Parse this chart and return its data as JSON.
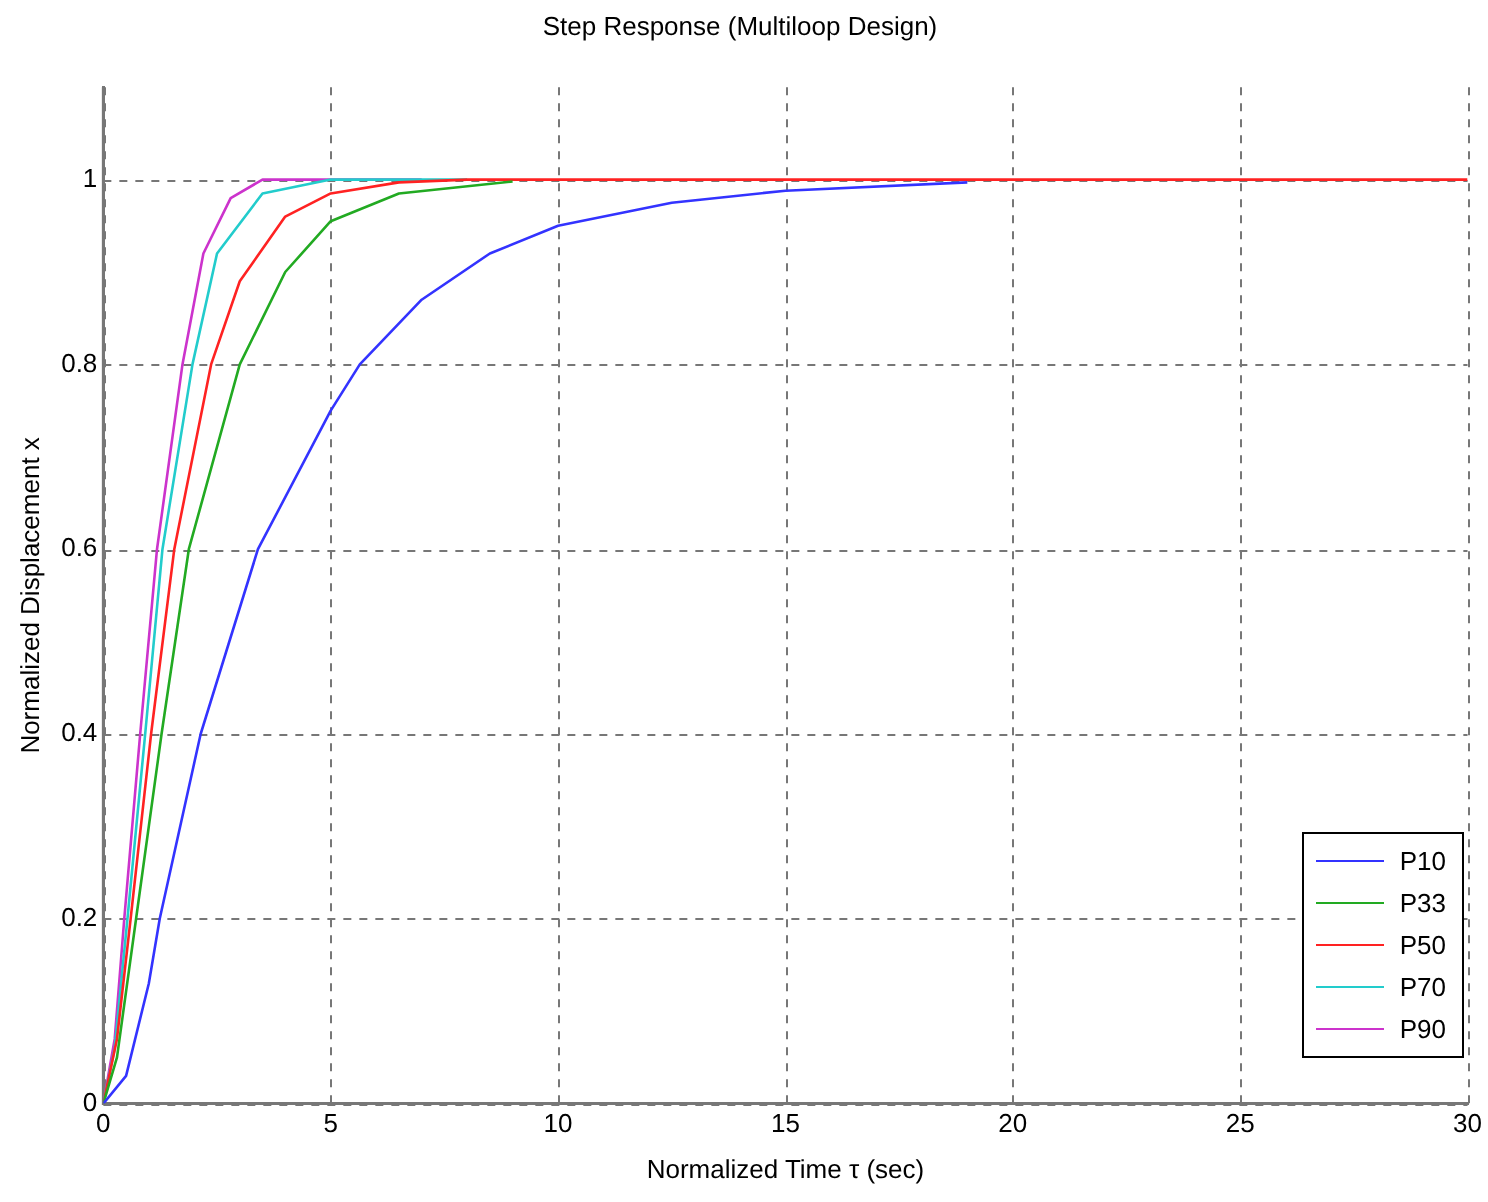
{
  "chart_data": {
    "type": "line",
    "title": "Step Response (Multiloop Design)",
    "xlabel": "Normalized Time τ (sec)",
    "ylabel": "Normalized Displacement x",
    "xlim": [
      0,
      30
    ],
    "xticks": [
      0,
      5,
      10,
      15,
      20,
      25,
      30
    ],
    "ylim": [
      0,
      1.1
    ],
    "yticks": [
      0,
      0.2,
      0.4,
      0.6,
      0.8,
      1
    ],
    "grid": true,
    "legend": "bottom right",
    "marker": "none",
    "series": [
      {
        "name": "P10",
        "color": "#3333ff",
        "x": [
          0,
          0.5,
          1,
          1.24,
          2.14,
          3.4,
          5,
          5.64,
          7,
          8.5,
          10,
          12.5,
          15,
          19
        ],
        "values": [
          0,
          0.03,
          0.13,
          0.2,
          0.4,
          0.6,
          0.75,
          0.8,
          0.87,
          0.92,
          0.95,
          0.975,
          0.988,
          0.997
        ]
      },
      {
        "name": "P33",
        "color": "#22aa22",
        "x": [
          0,
          0.3,
          0.72,
          1.28,
          1.88,
          3,
          4,
          5,
          6.5,
          9
        ],
        "values": [
          0,
          0.05,
          0.2,
          0.4,
          0.6,
          0.8,
          0.9,
          0.955,
          0.985,
          0.998
        ]
      },
      {
        "name": "P50",
        "color": "#ff2222",
        "x": [
          0,
          0.3,
          0.6,
          1.05,
          1.56,
          2.37,
          3,
          4,
          5,
          6.5,
          8,
          30
        ],
        "values": [
          0,
          0.07,
          0.2,
          0.4,
          0.6,
          0.8,
          0.89,
          0.96,
          0.985,
          0.997,
          1,
          1
        ]
      },
      {
        "name": "P70",
        "color": "#22cccc",
        "x": [
          0,
          0.25,
          0.53,
          0.92,
          1.3,
          1.96,
          2.5,
          3.5,
          5,
          8
        ],
        "values": [
          0,
          0.06,
          0.2,
          0.4,
          0.6,
          0.8,
          0.92,
          0.985,
          1,
          1
        ]
      },
      {
        "name": "P90",
        "color": "#cc33cc",
        "x": [
          0,
          0.25,
          0.46,
          0.81,
          1.18,
          1.74,
          2.2,
          2.8,
          3.5,
          7
        ],
        "values": [
          0,
          0.07,
          0.2,
          0.4,
          0.6,
          0.8,
          0.92,
          0.98,
          1,
          1
        ]
      }
    ]
  }
}
